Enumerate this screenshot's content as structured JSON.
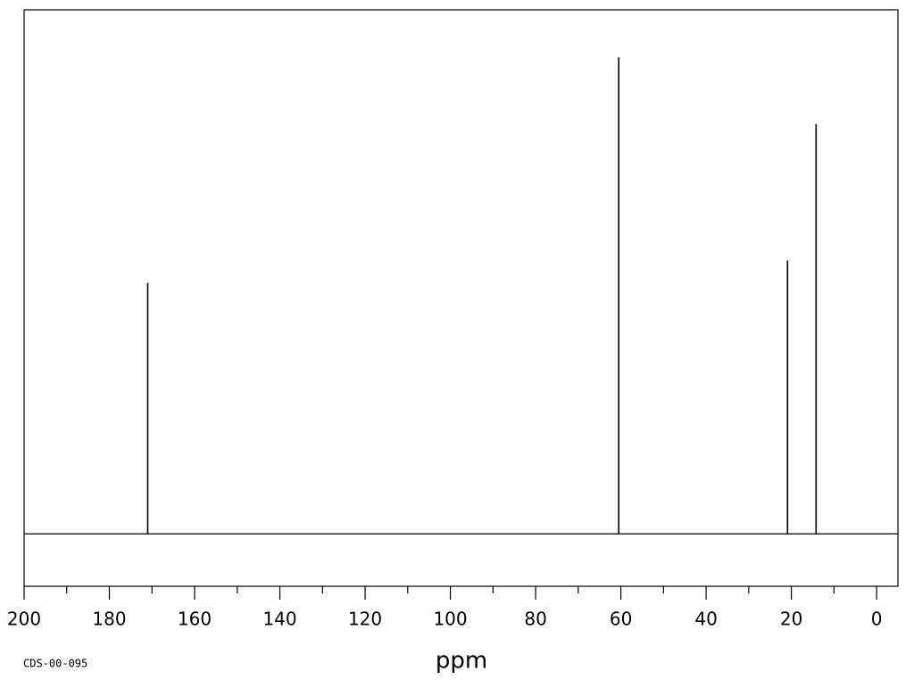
{
  "chart_data": {
    "type": "spectrum",
    "x_label": "ppm",
    "code": "CDS-00-095",
    "x": [
      171.0,
      60.5,
      20.9,
      14.2
    ],
    "values": [
      52.7,
      100,
      57.4,
      86
    ],
    "color": "#000000",
    "xlim": [
      200,
      -5
    ],
    "ylim": [
      -11,
      110
    ],
    "xticks": [
      200,
      180,
      160,
      140,
      120,
      100,
      80,
      60,
      40,
      20,
      0
    ],
    "xticks_minor": [
      190,
      170,
      150,
      130,
      110,
      90,
      70,
      50,
      30,
      10
    ]
  }
}
